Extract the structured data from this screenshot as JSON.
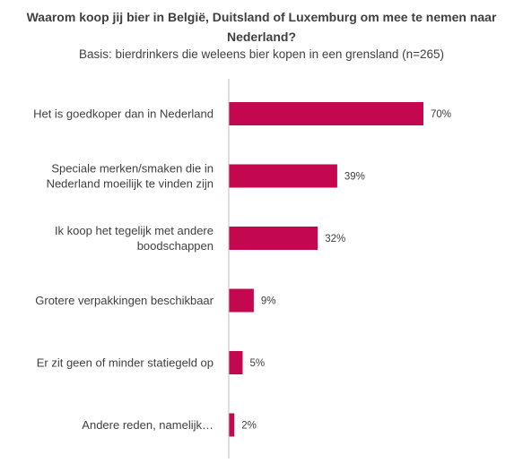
{
  "chart_data": {
    "type": "bar",
    "orientation": "horizontal",
    "title": "Waarom koop jij bier in België, Duitsland of Luxemburg om mee te nemen naar Nederland?",
    "subtitle": "Basis: bierdrinkers die weleens bier kopen in een grensland (n=265)",
    "categories": [
      [
        "Het is goedkoper dan in Nederland"
      ],
      [
        "Speciale merken/smaken die in",
        "Nederland moeilijk te vinden zijn"
      ],
      [
        "Ik koop het tegelijk met andere",
        "boodschappen"
      ],
      [
        "Grotere verpakkingen beschikbaar"
      ],
      [
        "Er zit geen of minder statiegeld op"
      ],
      [
        "Andere reden, namelijk…"
      ]
    ],
    "values": [
      70,
      39,
      32,
      9,
      5,
      2
    ],
    "value_labels": [
      "70%",
      "39%",
      "32%",
      "9%",
      "5%",
      "2%"
    ],
    "unit": "%",
    "xlim": [
      0,
      100
    ],
    "bar_color": "#c4084f",
    "axis_color": "#bfbfbf",
    "grid": false,
    "legend": "none"
  }
}
